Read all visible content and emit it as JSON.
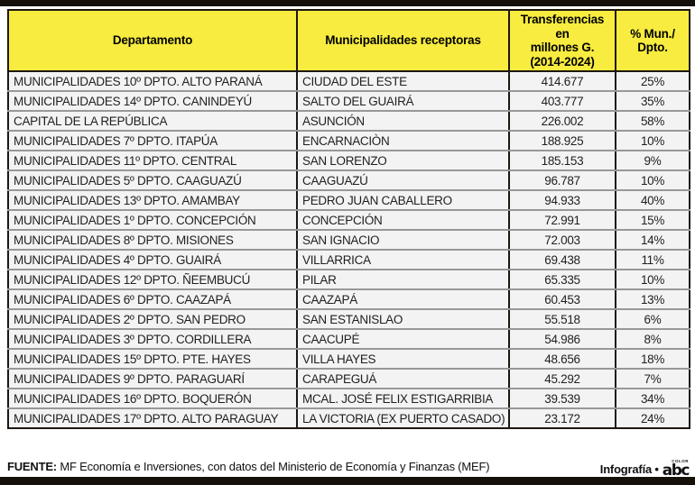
{
  "colors": {
    "header_yellow": "#f7ec3f",
    "row_bg": "#f3f3f3",
    "border_dark": "#1d1710",
    "row_divider": "#989898",
    "bar_black": "#16100a",
    "text_dark": "#1f1f1f"
  },
  "header": {
    "col1": "Departamento",
    "col2": "Municipalidades receptoras",
    "col3": "Transferencias en\nmillones G.\n(2014-2024)",
    "col4": "% Mun./\nDpto."
  },
  "chart_data": {
    "type": "table",
    "title": "Transferencias a municipalidades receptoras",
    "columns": [
      "Departamento",
      "Municipalidades receptoras",
      "Transferencias en millones G. (2014-2024)",
      "% Mun./Dpto."
    ],
    "rows": [
      [
        "MUNICIPALIDADES 10º DPTO. ALTO PARANÁ",
        "CIUDAD DEL ESTE",
        "414.677",
        "25%"
      ],
      [
        "MUNICIPALIDADES 14º DPTO. CANINDEYÚ",
        "SALTO DEL GUAIRÁ",
        "403.777",
        "35%"
      ],
      [
        "CAPITAL DE LA REPÚBLICA",
        "ASUNCIÓN",
        "226.002",
        "58%"
      ],
      [
        "MUNICIPALIDADES 7º DPTO. ITAPÚA",
        "ENCARNACIÒN",
        "188.925",
        "10%"
      ],
      [
        "MUNICIPALIDADES 11º DPTO. CENTRAL",
        "SAN LORENZO",
        "185.153",
        "9%"
      ],
      [
        "MUNICIPALIDADES 5º DPTO. CAAGUAZÚ",
        "CAAGUAZÚ",
        "96.787",
        "10%"
      ],
      [
        "MUNICIPALIDADES 13º DPTO. AMAMBAY",
        "PEDRO JUAN CABALLERO",
        "94.933",
        "40%"
      ],
      [
        "MUNICIPALIDADES 1º DPTO. CONCEPCIÓN",
        "CONCEPCIÓN",
        "72.991",
        "15%"
      ],
      [
        "MUNICIPALIDADES 8º DPTO. MISIONES",
        "SAN IGNACIO",
        "72.003",
        "14%"
      ],
      [
        "MUNICIPALIDADES 4º DPTO. GUAIRÁ",
        "VILLARRICA",
        "69.438",
        "11%"
      ],
      [
        "MUNICIPALIDADES 12º DPTO. ÑEEMBUCÚ",
        "PILAR",
        "65.335",
        "10%"
      ],
      [
        "MUNICIPALIDADES 6º DPTO. CAAZAPÁ",
        "CAAZAPÁ",
        "60.453",
        "13%"
      ],
      [
        "MUNICIPALIDADES 2º DPTO. SAN PEDRO",
        "SAN ESTANISLAO",
        "55.518",
        "6%"
      ],
      [
        "MUNICIPALIDADES 3º DPTO. CORDILLERA",
        "CAACUPÉ",
        "54.986",
        "8%"
      ],
      [
        "MUNICIPALIDADES 15º DPTO. PTE. HAYES",
        "VILLA HAYES",
        "48.656",
        "18%"
      ],
      [
        "MUNICIPALIDADES 9º DPTO. PARAGUARÍ",
        "CARAPEGUÁ",
        "45.292",
        "7%"
      ],
      [
        "MUNICIPALIDADES 16º DPTO. BOQUERÓN",
        "MCAL. JOSÉ FELIX ESTIGARRIBIA",
        "39.539",
        "34%"
      ],
      [
        "MUNICIPALIDADES 17º DPTO. ALTO PARAGUAY",
        "LA VICTORIA (EX PUERTO CASADO)",
        "23.172",
        "24%"
      ]
    ]
  },
  "footer": {
    "source_label": "FUENTE:",
    "source_text": " MF Economía e Inversiones, con datos del Ministerio de Economía y Finanzas (MEF)",
    "credit_text": "Infografía •",
    "logo_text": "abc",
    "logo_sub": "COLOR"
  }
}
